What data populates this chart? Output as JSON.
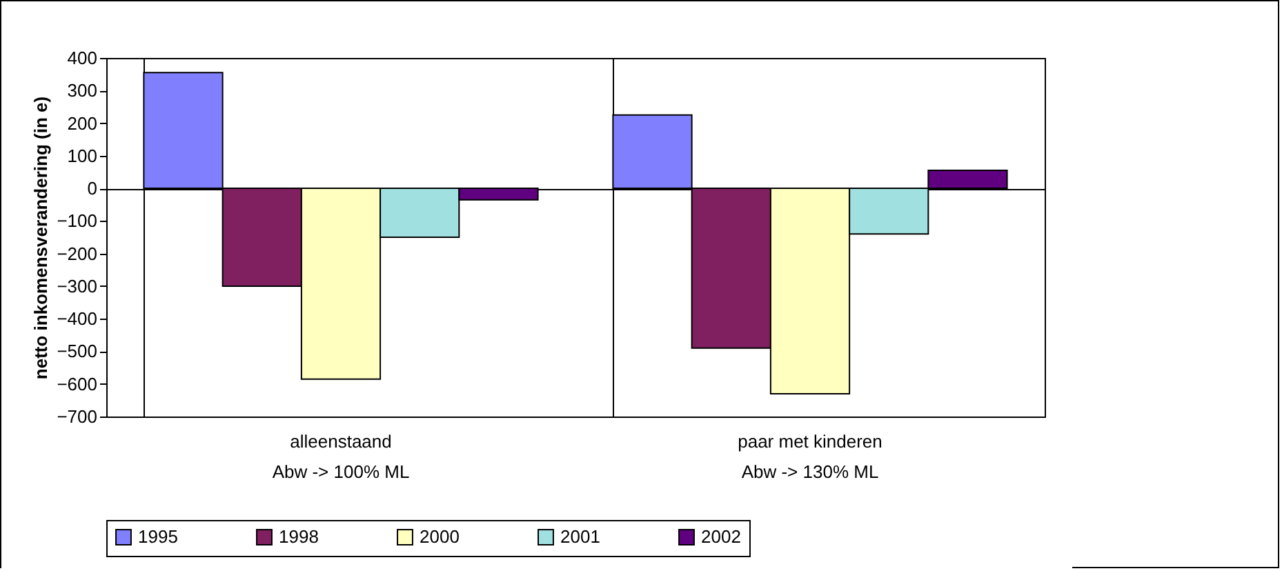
{
  "chart_data": {
    "type": "bar",
    "ylabel": "netto inkomensverandering (in e)",
    "categories": [
      "alleenstaand\nAbw  -> 100% ML",
      "paar met kinderen\nAbw  -> 130% ML"
    ],
    "series": [
      {
        "name": "1995",
        "color": "#8080ff",
        "values": [
          355,
          225
        ]
      },
      {
        "name": "1998",
        "color": "#802060",
        "values": [
          -300,
          -490
        ]
      },
      {
        "name": "2000",
        "color": "#ffffc0",
        "values": [
          -585,
          -630
        ]
      },
      {
        "name": "2001",
        "color": "#a0e0e0",
        "values": [
          -150,
          -140
        ]
      },
      {
        "name": "2002",
        "color": "#600080",
        "values": [
          -35,
          55
        ]
      }
    ],
    "ylim": [
      -700,
      400
    ],
    "yticks": [
      -700,
      -600,
      -500,
      -400,
      -300,
      -200,
      -100,
      0,
      100,
      200,
      300,
      400
    ],
    "legend": "bottom"
  }
}
